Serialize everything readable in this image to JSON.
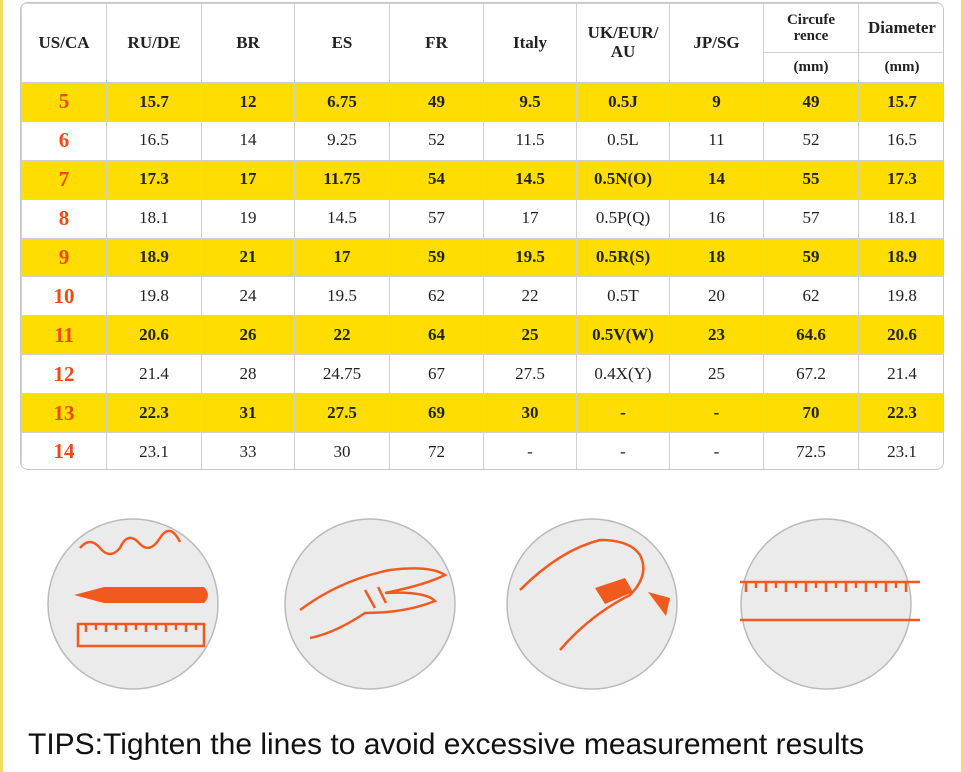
{
  "table": {
    "headers": [
      [
        "US/CA"
      ],
      [
        "RU/DE"
      ],
      [
        "BR"
      ],
      [
        "ES"
      ],
      [
        "FR"
      ],
      [
        "Italy"
      ],
      [
        "UK/EUR/",
        "AU"
      ],
      [
        "JP/SG"
      ],
      [
        "Circufe",
        "rence"
      ],
      [
        "Diameter"
      ]
    ],
    "header_units": [
      "(mm)",
      "(mm)"
    ],
    "rows": [
      [
        "5",
        "15.7",
        "12",
        "6.75",
        "49",
        "9.5",
        "0.5J",
        "9",
        "49",
        "15.7"
      ],
      [
        "6",
        "16.5",
        "14",
        "9.25",
        "52",
        "11.5",
        "0.5L",
        "11",
        "52",
        "16.5"
      ],
      [
        "7",
        "17.3",
        "17",
        "11.75",
        "54",
        "14.5",
        "0.5N(O)",
        "14",
        "55",
        "17.3"
      ],
      [
        "8",
        "18.1",
        "19",
        "14.5",
        "57",
        "17",
        "0.5P(Q)",
        "16",
        "57",
        "18.1"
      ],
      [
        "9",
        "18.9",
        "21",
        "17",
        "59",
        "19.5",
        "0.5R(S)",
        "18",
        "59",
        "18.9"
      ],
      [
        "10",
        "19.8",
        "24",
        "19.5",
        "62",
        "22",
        "0.5T",
        "20",
        "62",
        "19.8"
      ],
      [
        "11",
        "20.6",
        "26",
        "22",
        "64",
        "25",
        "0.5V(W)",
        "23",
        "64.6",
        "20.6"
      ],
      [
        "12",
        "21.4",
        "28",
        "24.75",
        "67",
        "27.5",
        "0.4X(Y)",
        "25",
        "67.2",
        "21.4"
      ],
      [
        "13",
        "22.3",
        "31",
        "27.5",
        "69",
        "30",
        "-",
        "-",
        "70",
        "22.3"
      ],
      [
        "14",
        "23.1",
        "33",
        "30",
        "72",
        "-",
        "-",
        "-",
        "72.5",
        "23.1"
      ]
    ]
  },
  "tips": "TIPS:Tighten the lines to avoid excessive measurement results"
}
